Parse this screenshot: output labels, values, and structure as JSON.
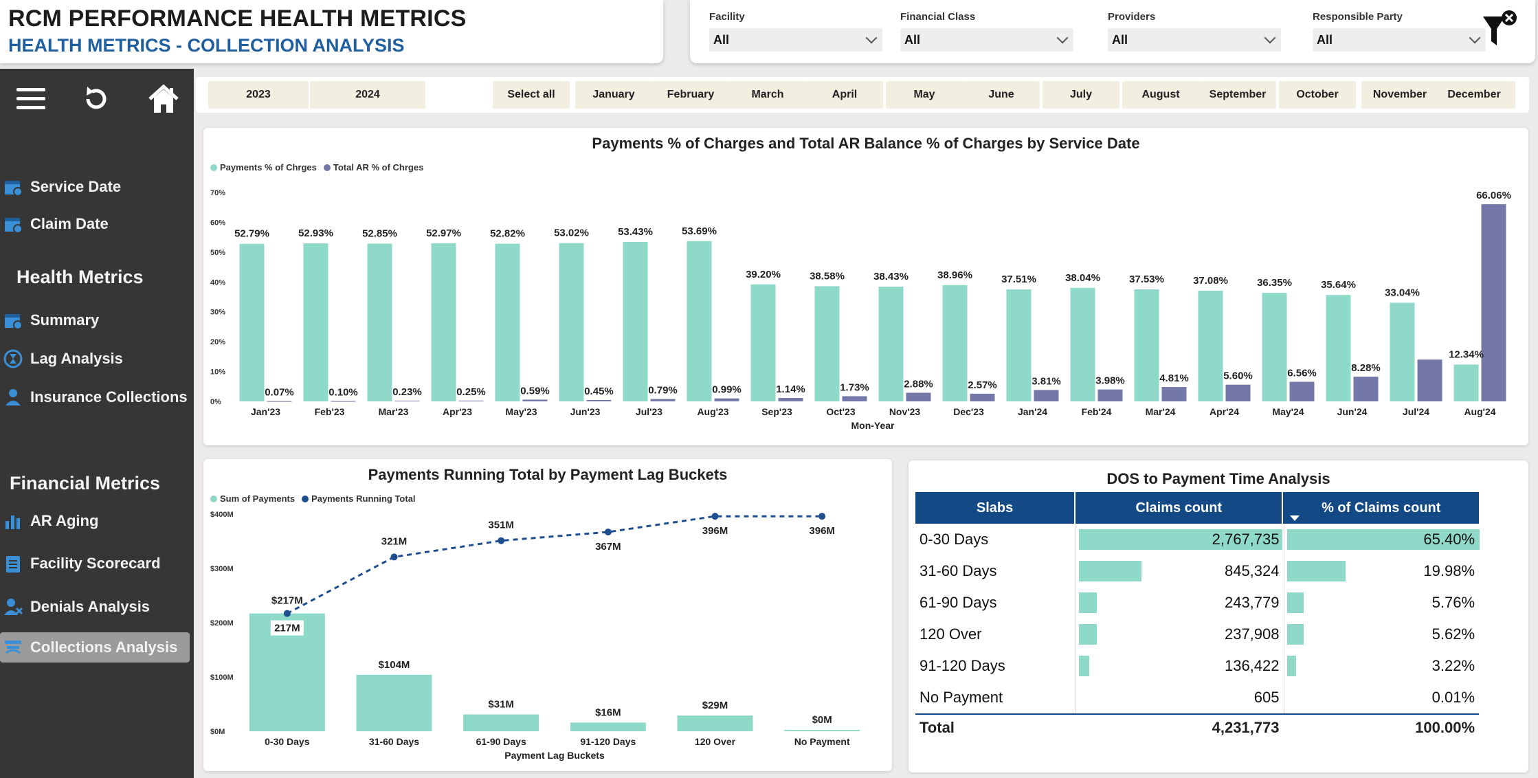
{
  "header": {
    "title": "RCM PERFORMANCE HEALTH METRICS",
    "subtitle": "HEALTH METRICS - COLLECTION ANALYSIS"
  },
  "filters": [
    {
      "label": "Facility",
      "value": "All"
    },
    {
      "label": "Financial Class",
      "value": "All"
    },
    {
      "label": "Providers",
      "value": "All"
    },
    {
      "label": "Responsible Party",
      "value": "All"
    }
  ],
  "sidebar": {
    "date_items": [
      "Service Date",
      "Claim Date"
    ],
    "health_heading": "Health Metrics",
    "health_items": [
      "Summary",
      "Lag Analysis",
      "Insurance Collections"
    ],
    "financial_heading": "Financial Metrics",
    "financial_items": [
      "AR Aging",
      "Facility Scorecard",
      "Denials Analysis",
      "Collections Analysis"
    ],
    "active_item": "Collections Analysis"
  },
  "slicer": {
    "years": [
      "2023",
      "2024"
    ],
    "months": [
      "Select all",
      "January",
      "February",
      "March",
      "April",
      "May",
      "June",
      "July",
      "August",
      "September",
      "October",
      "November",
      "December"
    ]
  },
  "colors": {
    "teal": "#8fd9c9",
    "purple": "#7378a8",
    "navy": "#134a85",
    "dark_blue_line": "#1f4e8f"
  },
  "chart_data": [
    {
      "type": "bar",
      "title": "Payments % of Charges and Total AR Balance % of Charges by Service Date",
      "xlabel": "Mon-Year",
      "ylabel": "",
      "ylim": [
        0,
        70
      ],
      "yticks": [
        "0%",
        "10%",
        "20%",
        "30%",
        "40%",
        "50%",
        "60%",
        "70%"
      ],
      "legend_position": "top-left",
      "categories": [
        "Jan'23",
        "Feb'23",
        "Mar'23",
        "Apr'23",
        "May'23",
        "Jun'23",
        "Jul'23",
        "Aug'23",
        "Sep'23",
        "Oct'23",
        "Nov'23",
        "Dec'23",
        "Jan'24",
        "Feb'24",
        "Mar'24",
        "Apr'24",
        "May'24",
        "Jun'24",
        "Jul'24",
        "Aug'24"
      ],
      "series": [
        {
          "name": "Payments % of Chrges",
          "values": [
            52.79,
            52.93,
            52.85,
            52.97,
            52.82,
            53.02,
            53.43,
            53.69,
            39.2,
            38.58,
            38.43,
            38.96,
            37.51,
            38.04,
            37.53,
            37.08,
            36.35,
            35.64,
            33.04,
            12.34
          ],
          "labels": [
            "52.79%",
            "52.93%",
            "52.85%",
            "52.97%",
            "52.82%",
            "53.02%",
            "53.43%",
            "53.69%",
            "39.20%",
            "38.58%",
            "38.43%",
            "38.96%",
            "37.51%",
            "38.04%",
            "37.53%",
            "37.08%",
            "36.35%",
            "35.64%",
            "33.04%",
            "12.34%"
          ]
        },
        {
          "name": "Total AR % of Chrges",
          "values": [
            0.07,
            0.1,
            0.23,
            0.25,
            0.59,
            0.45,
            0.79,
            0.99,
            1.14,
            1.73,
            2.88,
            2.57,
            3.81,
            3.98,
            4.81,
            5.6,
            6.56,
            8.28,
            14.0,
            66.06
          ],
          "labels": [
            "0.07%",
            "0.10%",
            "0.23%",
            "0.25%",
            "0.59%",
            "0.45%",
            "0.79%",
            "0.99%",
            "1.14%",
            "1.73%",
            "2.88%",
            "2.57%",
            "3.81%",
            "3.98%",
            "4.81%",
            "5.60%",
            "6.56%",
            "8.28%",
            "",
            "66.06%"
          ]
        }
      ]
    },
    {
      "type": "bar",
      "title": "Payments Running Total by Payment Lag Buckets",
      "xlabel": "Payment Lag Buckets",
      "ylabel": "",
      "ylim": [
        0,
        400
      ],
      "yticks": [
        "$0M",
        "$100M",
        "$200M",
        "$300M",
        "$400M"
      ],
      "legend_position": "top-left",
      "categories": [
        "0-30 Days",
        "31-60 Days",
        "61-90 Days",
        "91-120 Days",
        "120 Over",
        "No Payment"
      ],
      "series": [
        {
          "name": "Sum of Payments",
          "values": [
            217,
            104,
            31,
            16,
            29,
            0
          ],
          "labels": [
            "217M",
            "$104M",
            "$31M",
            "$16M",
            "$29M",
            "$0M"
          ]
        },
        {
          "name": "Payments Running Total",
          "values": [
            217,
            321,
            351,
            367,
            396,
            396
          ],
          "labels": [
            "$217M",
            "321M",
            "351M",
            "367M",
            "396M",
            "396M"
          ]
        }
      ]
    },
    {
      "type": "table",
      "title": "DOS to Payment Time Analysis",
      "columns": [
        "Slabs",
        "Claims count",
        "% of Claims count"
      ],
      "rows": [
        {
          "slab": "0-30 Days",
          "count": "2,767,735",
          "count_value": 2767735,
          "pct": "65.40%",
          "pct_value": 65.4
        },
        {
          "slab": "31-60 Days",
          "count": "845,324",
          "count_value": 845324,
          "pct": "19.98%",
          "pct_value": 19.98
        },
        {
          "slab": "61-90 Days",
          "count": "243,779",
          "count_value": 243779,
          "pct": "5.76%",
          "pct_value": 5.76
        },
        {
          "slab": "120 Over",
          "count": "237,908",
          "count_value": 237908,
          "pct": "5.62%",
          "pct_value": 5.62
        },
        {
          "slab": "91-120 Days",
          "count": "136,422",
          "count_value": 136422,
          "pct": "3.22%",
          "pct_value": 3.22
        },
        {
          "slab": "No Payment",
          "count": "605",
          "count_value": 605,
          "pct": "0.01%",
          "pct_value": 0.01
        }
      ],
      "total": {
        "label": "Total",
        "count": "4,231,773",
        "pct": "100.00%"
      }
    }
  ]
}
